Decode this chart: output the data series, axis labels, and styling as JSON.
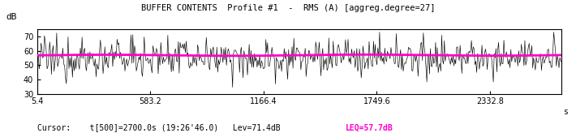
{
  "title": "BUFFER CONTENTS  Profile #1  -  RMS (A) [aggreg.degree=27]",
  "ylabel": "dB",
  "xlabel_unit": "s",
  "xlim": [
    5.4,
    2700.0
  ],
  "ylim": [
    30,
    75
  ],
  "yticks": [
    30,
    40,
    50,
    60,
    70
  ],
  "xticks": [
    5.4,
    583.2,
    1166.4,
    1749.6,
    2332.8
  ],
  "xtick_labels": [
    "5.4",
    "583.2",
    "1166.4",
    "1749.6",
    "2332.8"
  ],
  "cursor_text": "Cursor:    t[500]=2700.0s (19:26'46.0)   Lev=71.4dB",
  "leq_text": "LEQ=57.7dB",
  "leq_value": 57.7,
  "bg_color": "#ffffff",
  "line_color": "#000000",
  "leq_line_color": "#ff00cc",
  "cursor_color": "#000000",
  "leq_text_color": "#ff00cc",
  "noise_mean": 54.5,
  "noise_std": 5.5,
  "leq_start": 56.8,
  "leq_end": 57.0,
  "n_points": 600,
  "title_fontsize": 7.5,
  "tick_fontsize": 7,
  "cursor_fontsize": 7
}
